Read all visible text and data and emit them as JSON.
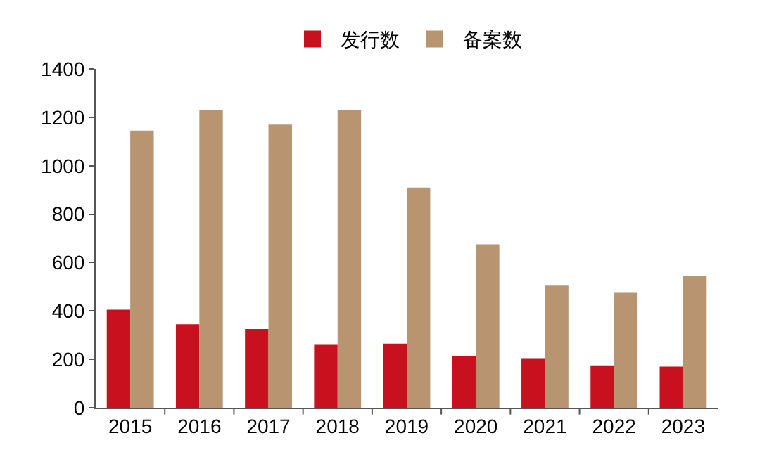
{
  "chart_data": {
    "type": "bar",
    "categories": [
      "2015",
      "2016",
      "2017",
      "2018",
      "2019",
      "2020",
      "2021",
      "2022",
      "2023"
    ],
    "series": [
      {
        "name": "发行数",
        "color": "#c8101e",
        "values": [
          405,
          345,
          325,
          260,
          265,
          215,
          205,
          175,
          170
        ]
      },
      {
        "name": "备案数",
        "color": "#b89470",
        "values": [
          1145,
          1230,
          1170,
          1230,
          910,
          675,
          505,
          475,
          545
        ]
      }
    ],
    "ylim": [
      0,
      1400
    ],
    "yticks": [
      0,
      200,
      400,
      600,
      800,
      1000,
      1200,
      1400
    ],
    "grid": false,
    "legend": "top"
  }
}
